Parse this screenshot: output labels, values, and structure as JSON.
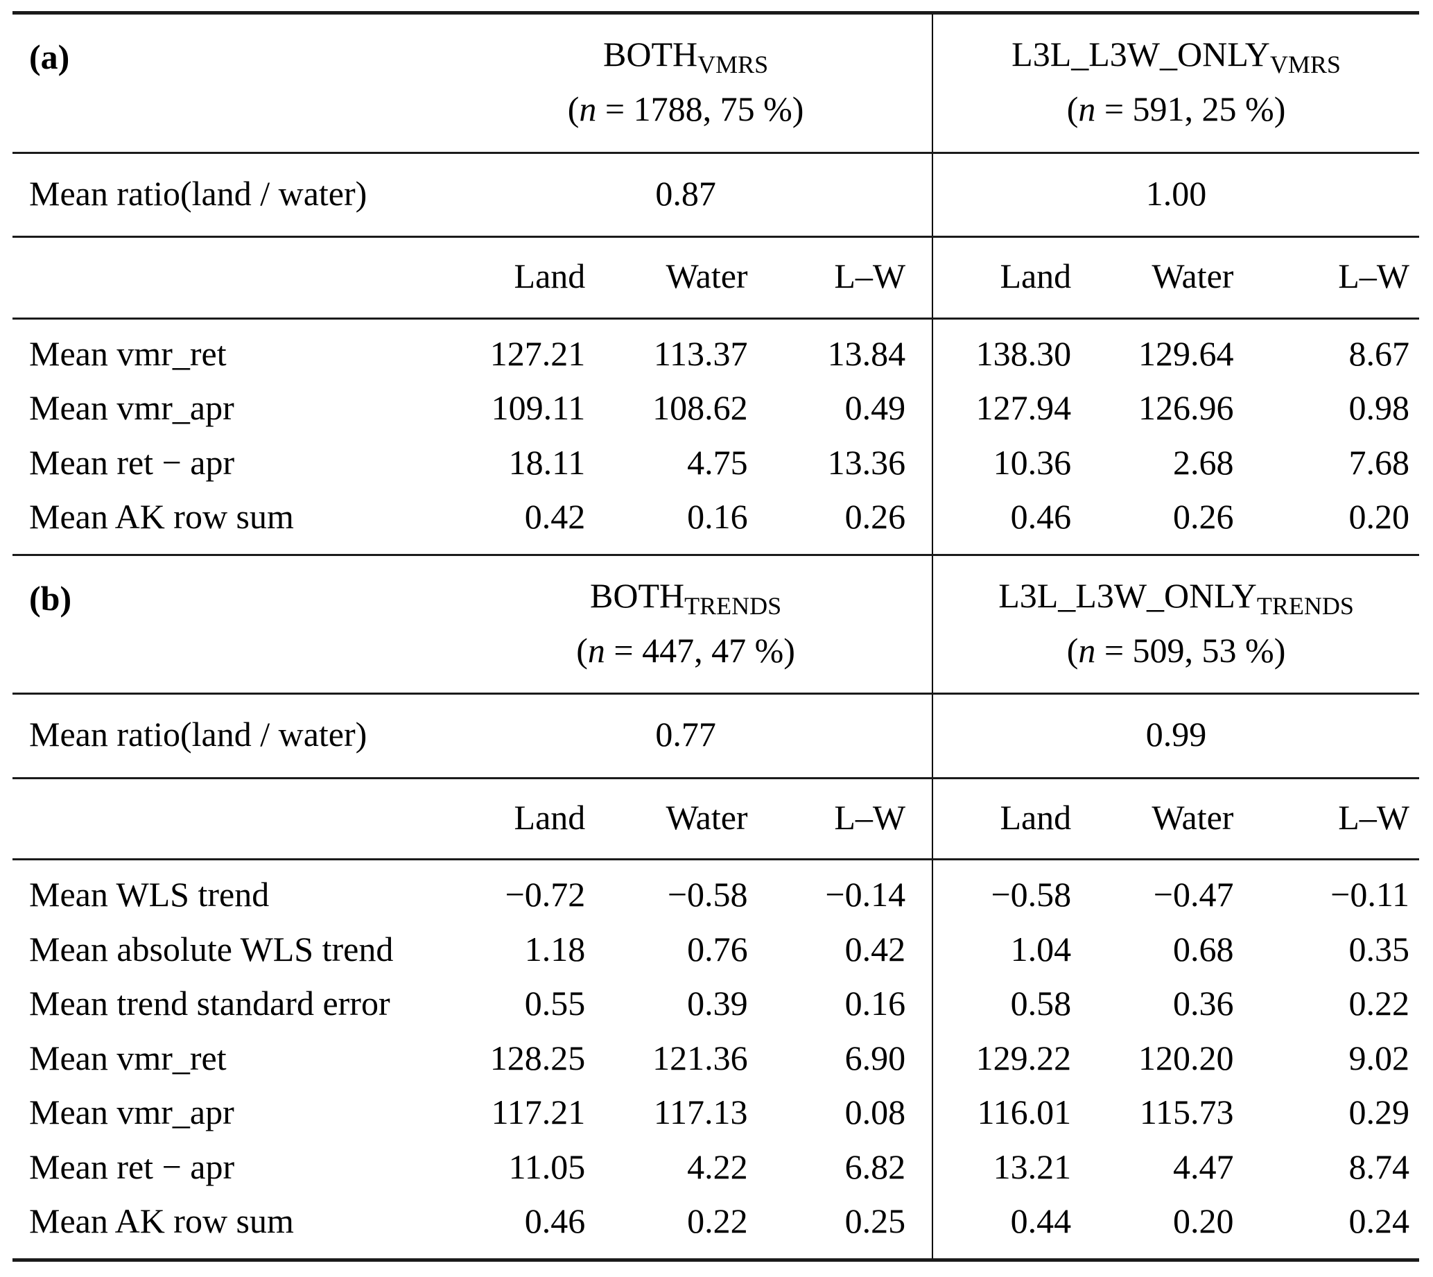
{
  "panels": [
    {
      "label": "(a)",
      "groups": [
        {
          "name": "BOTH",
          "subscript": "VMRS",
          "count_open": "(",
          "count_var": "n",
          "count_rest": " = 1788, 75 %)"
        },
        {
          "name": "L3L_L3W_ONLY",
          "subscript": "VMRS",
          "count_open": "(",
          "count_var": "n",
          "count_rest": " = 591, 25 %)"
        }
      ],
      "ratio_row": {
        "label": "Mean ratio(land / water)",
        "values": [
          "0.87",
          "1.00"
        ]
      },
      "col_headers": [
        "Land",
        "Water",
        "L–W",
        "Land",
        "Water",
        "L–W"
      ],
      "rows": [
        {
          "label": "Mean vmr_ret",
          "values": [
            "127.21",
            "113.37",
            "13.84",
            "138.30",
            "129.64",
            "8.67"
          ]
        },
        {
          "label": "Mean vmr_apr",
          "values": [
            "109.11",
            "108.62",
            "0.49",
            "127.94",
            "126.96",
            "0.98"
          ]
        },
        {
          "label": "Mean ret − apr",
          "values": [
            "18.11",
            "4.75",
            "13.36",
            "10.36",
            "2.68",
            "7.68"
          ]
        },
        {
          "label": "Mean AK row sum",
          "values": [
            "0.42",
            "0.16",
            "0.26",
            "0.46",
            "0.26",
            "0.20"
          ]
        }
      ]
    },
    {
      "label": "(b)",
      "groups": [
        {
          "name": "BOTH",
          "subscript": "TRENDS",
          "count_open": "(",
          "count_var": "n",
          "count_rest": " = 447, 47 %)"
        },
        {
          "name": "L3L_L3W_ONLY",
          "subscript": "TRENDS",
          "count_open": "(",
          "count_var": "n",
          "count_rest": " = 509, 53 %)"
        }
      ],
      "ratio_row": {
        "label": "Mean ratio(land / water)",
        "values": [
          "0.77",
          "0.99"
        ]
      },
      "col_headers": [
        "Land",
        "Water",
        "L–W",
        "Land",
        "Water",
        "L–W"
      ],
      "rows": [
        {
          "label": "Mean WLS trend",
          "values": [
            "−0.72",
            "−0.58",
            "−0.14",
            "−0.58",
            "−0.47",
            "−0.11"
          ]
        },
        {
          "label": "Mean absolute WLS trend",
          "values": [
            "1.18",
            "0.76",
            "0.42",
            "1.04",
            "0.68",
            "0.35"
          ]
        },
        {
          "label": "Mean trend standard error",
          "values": [
            "0.55",
            "0.39",
            "0.16",
            "0.58",
            "0.36",
            "0.22"
          ]
        },
        {
          "label": "Mean vmr_ret",
          "values": [
            "128.25",
            "121.36",
            "6.90",
            "129.22",
            "120.20",
            "9.02"
          ]
        },
        {
          "label": "Mean vmr_apr",
          "values": [
            "117.21",
            "117.13",
            "0.08",
            "116.01",
            "115.73",
            "0.29"
          ]
        },
        {
          "label": "Mean ret − apr",
          "values": [
            "11.05",
            "4.22",
            "6.82",
            "13.21",
            "4.47",
            "8.74"
          ]
        },
        {
          "label": "Mean AK row sum",
          "values": [
            "0.46",
            "0.22",
            "0.25",
            "0.44",
            "0.20",
            "0.24"
          ]
        }
      ]
    }
  ]
}
